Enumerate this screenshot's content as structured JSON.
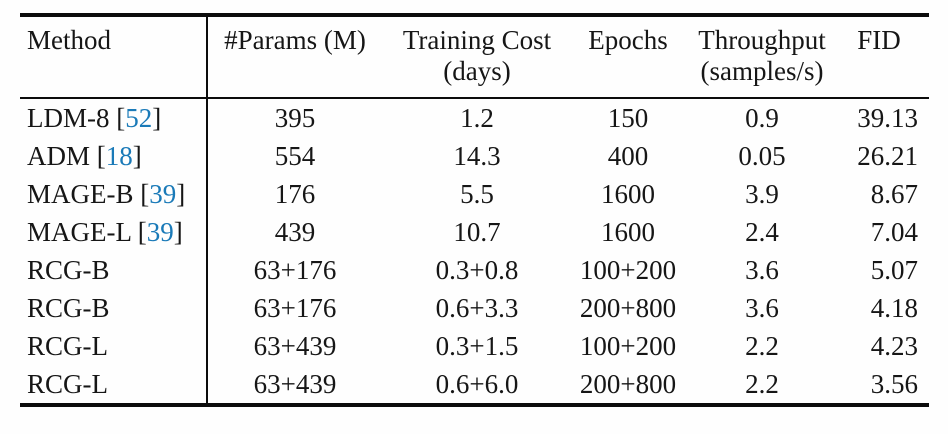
{
  "table": {
    "citation_color": "#1a7ab8",
    "columns": [
      {
        "label": "Method",
        "sub": ""
      },
      {
        "label": "#Params (M)",
        "sub": ""
      },
      {
        "label": "Training Cost",
        "sub": "(days)"
      },
      {
        "label": "Epochs",
        "sub": ""
      },
      {
        "label": "Throughput",
        "sub": "(samples/s)"
      },
      {
        "label": "FID",
        "sub": ""
      }
    ],
    "rows": [
      {
        "method": "LDM-8 [",
        "cite": "52",
        "close": "]",
        "params": "395",
        "cost": "1.2",
        "epochs": "150",
        "throughput": "0.9",
        "fid": "39.13"
      },
      {
        "method": "ADM [",
        "cite": "18",
        "close": "]",
        "params": "554",
        "cost": "14.3",
        "epochs": "400",
        "throughput": "0.05",
        "fid": "26.21"
      },
      {
        "method": "MAGE-B [",
        "cite": "39",
        "close": "]",
        "params": "176",
        "cost": "5.5",
        "epochs": "1600",
        "throughput": "3.9",
        "fid": "8.67"
      },
      {
        "method": "MAGE-L [",
        "cite": "39",
        "close": "]",
        "params": "439",
        "cost": "10.7",
        "epochs": "1600",
        "throughput": "2.4",
        "fid": "7.04"
      },
      {
        "method": "RCG-B",
        "cite": "",
        "close": "",
        "params": "63+176",
        "cost": "0.3+0.8",
        "epochs": "100+200",
        "throughput": "3.6",
        "fid": "5.07"
      },
      {
        "method": "RCG-B",
        "cite": "",
        "close": "",
        "params": "63+176",
        "cost": "0.6+3.3",
        "epochs": "200+800",
        "throughput": "3.6",
        "fid": "4.18"
      },
      {
        "method": "RCG-L",
        "cite": "",
        "close": "",
        "params": "63+439",
        "cost": "0.3+1.5",
        "epochs": "100+200",
        "throughput": "2.2",
        "fid": "4.23"
      },
      {
        "method": "RCG-L",
        "cite": "",
        "close": "",
        "params": "63+439",
        "cost": "0.6+6.0",
        "epochs": "200+800",
        "throughput": "2.2",
        "fid": "3.56"
      }
    ]
  }
}
